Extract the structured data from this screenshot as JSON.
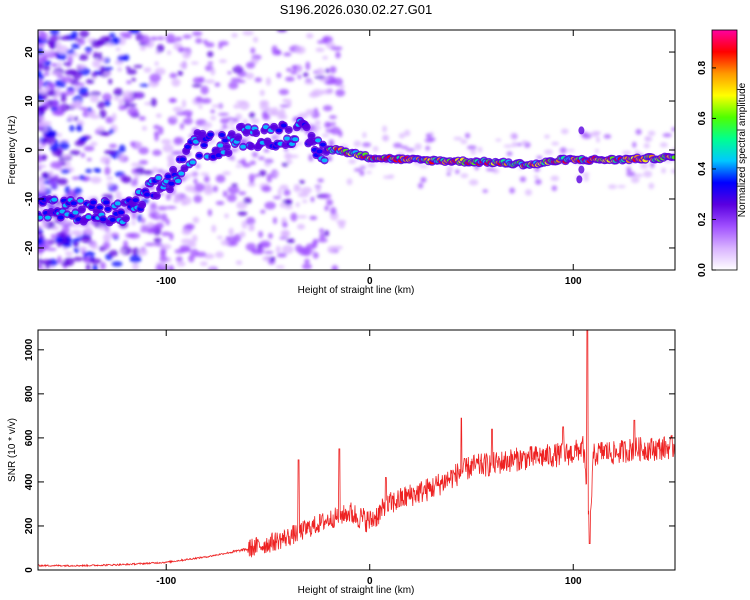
{
  "title": "S196.2026.030.02.27.G01",
  "chart_data": [
    {
      "type": "heatmap",
      "xlabel": "Height of straight line (km)",
      "ylabel": "Frequency (Hz)",
      "xlim": [
        -163,
        150
      ],
      "ylim": [
        -24.5,
        24.5
      ],
      "xticks": [
        -100,
        0,
        100
      ],
      "xtick_labels": [
        "-100",
        "0",
        "100"
      ],
      "yticks": [
        -20,
        -10,
        0,
        10,
        20
      ],
      "ytick_labels": [
        "-20",
        "-10",
        "0",
        "10",
        "20"
      ],
      "colorbar": {
        "label": "Normalized spectral amplitude",
        "range": [
          0,
          0.95
        ],
        "ticks": [
          0,
          0.2,
          0.4,
          0.6,
          0.8
        ],
        "tick_labels": [
          "0.0",
          "0.2",
          "0.4",
          "0.6",
          "0.8"
        ],
        "colors": [
          "#ffffff",
          "#d9b3ff",
          "#a050ff",
          "#5a00e0",
          "#0000ff",
          "#00c8ff",
          "#00ff90",
          "#50ff00",
          "#ffff00",
          "#ff9900",
          "#ff0000",
          "#ff00a0"
        ]
      },
      "ridge": {
        "x": [
          -163,
          -120,
          -105,
          -95,
          -85,
          -75,
          -60,
          -45,
          -35,
          -25,
          -15,
          0,
          20,
          60,
          80,
          95,
          105,
          120,
          150
        ],
        "y": [
          -12,
          -13,
          -8,
          -5,
          1,
          1,
          3,
          3,
          4,
          0,
          0,
          -1.5,
          -2,
          -2.5,
          -3,
          -2,
          -2,
          -2,
          -1.5
        ]
      }
    },
    {
      "type": "line",
      "xlabel": "Height of straight line (km)",
      "ylabel": "SNR (10 * v/v)",
      "xlim": [
        -163,
        150
      ],
      "ylim": [
        0,
        1090
      ],
      "xticks": [
        -100,
        0,
        100
      ],
      "xtick_labels": [
        "-100",
        "0",
        "100"
      ],
      "yticks": [
        0,
        200,
        400,
        600,
        800,
        1000
      ],
      "ytick_labels": [
        "0",
        "200",
        "400",
        "600",
        "800",
        "1000"
      ],
      "color": "#ee2222",
      "x": [
        -163,
        -140,
        -120,
        -100,
        -80,
        -60,
        -50,
        -40,
        -30,
        -20,
        -10,
        0,
        10,
        20,
        30,
        40,
        50,
        60,
        70,
        80,
        90,
        100,
        105,
        108,
        110,
        115,
        120,
        130,
        140,
        150
      ],
      "y": [
        20,
        20,
        25,
        35,
        60,
        95,
        120,
        150,
        190,
        230,
        260,
        220,
        300,
        340,
        370,
        420,
        470,
        480,
        500,
        510,
        520,
        530,
        560,
        170,
        520,
        540,
        530,
        550,
        550,
        560
      ],
      "spikes": [
        {
          "x": -35,
          "y": 500
        },
        {
          "x": -15,
          "y": 550
        },
        {
          "x": 8,
          "y": 420
        },
        {
          "x": 45,
          "y": 690
        },
        {
          "x": 60,
          "y": 640
        },
        {
          "x": 95,
          "y": 650
        },
        {
          "x": 107,
          "y": 1090
        },
        {
          "x": 108,
          "y": 120
        },
        {
          "x": 130,
          "y": 680
        }
      ]
    }
  ]
}
